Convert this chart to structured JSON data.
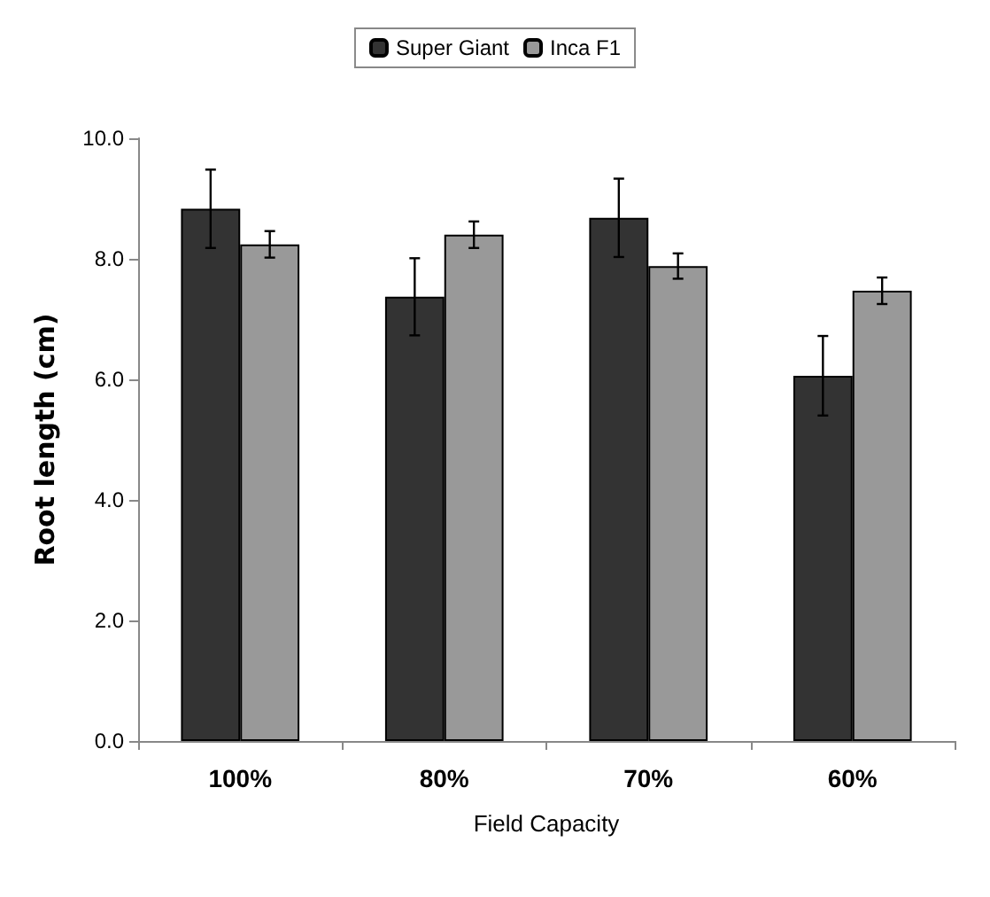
{
  "chart_data": {
    "type": "bar",
    "xlabel": "Field Capacity",
    "ylabel": "Root length (cm)",
    "categories": [
      "100%",
      "80%",
      "70%",
      "60%"
    ],
    "series": [
      {
        "name": "Super Giant",
        "color": "#333333",
        "values": [
          8.83,
          7.37,
          8.68,
          6.06
        ],
        "errors": [
          0.65,
          0.64,
          0.65,
          0.66
        ]
      },
      {
        "name": "Inca F1",
        "color": "#999999",
        "values": [
          8.24,
          8.4,
          7.88,
          7.47
        ],
        "errors": [
          0.22,
          0.22,
          0.21,
          0.22
        ]
      }
    ],
    "ylim": [
      0,
      10
    ],
    "yticks": [
      {
        "value": 0,
        "label": "0.0"
      },
      {
        "value": 2,
        "label": "2.0"
      },
      {
        "value": 4,
        "label": "4.0"
      },
      {
        "value": 6,
        "label": "6.0"
      },
      {
        "value": 8,
        "label": "8.0"
      },
      {
        "value": 10,
        "label": "10.0"
      }
    ],
    "grid": false,
    "legend": "top"
  }
}
